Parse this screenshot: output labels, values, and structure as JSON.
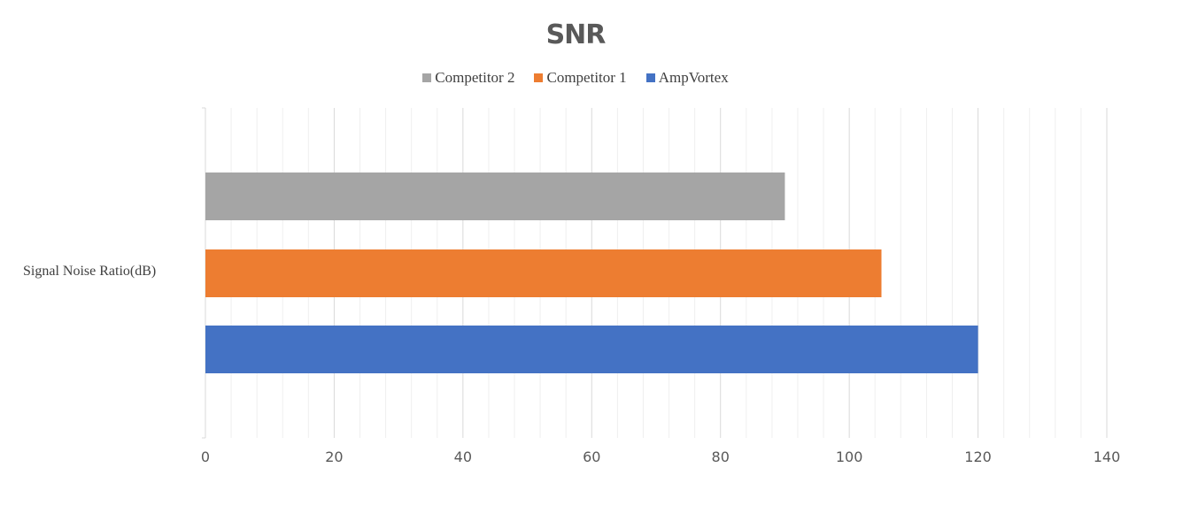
{
  "chart_data": {
    "type": "bar",
    "orientation": "horizontal",
    "title": "SNR",
    "categories": [
      "Signal Noise Ratio(dB)"
    ],
    "series": [
      {
        "name": "Competitor 2",
        "values": [
          90
        ],
        "color": "#a5a5a5"
      },
      {
        "name": "Competitor 1",
        "values": [
          105
        ],
        "color": "#ed7d31"
      },
      {
        "name": "AmpVortex",
        "values": [
          120
        ],
        "color": "#4472c4"
      }
    ],
    "xlim": [
      0,
      140
    ],
    "xticks": [
      0,
      20,
      40,
      60,
      80,
      100,
      120,
      140
    ],
    "grid": true,
    "minor_grid": true,
    "legend": "top"
  }
}
